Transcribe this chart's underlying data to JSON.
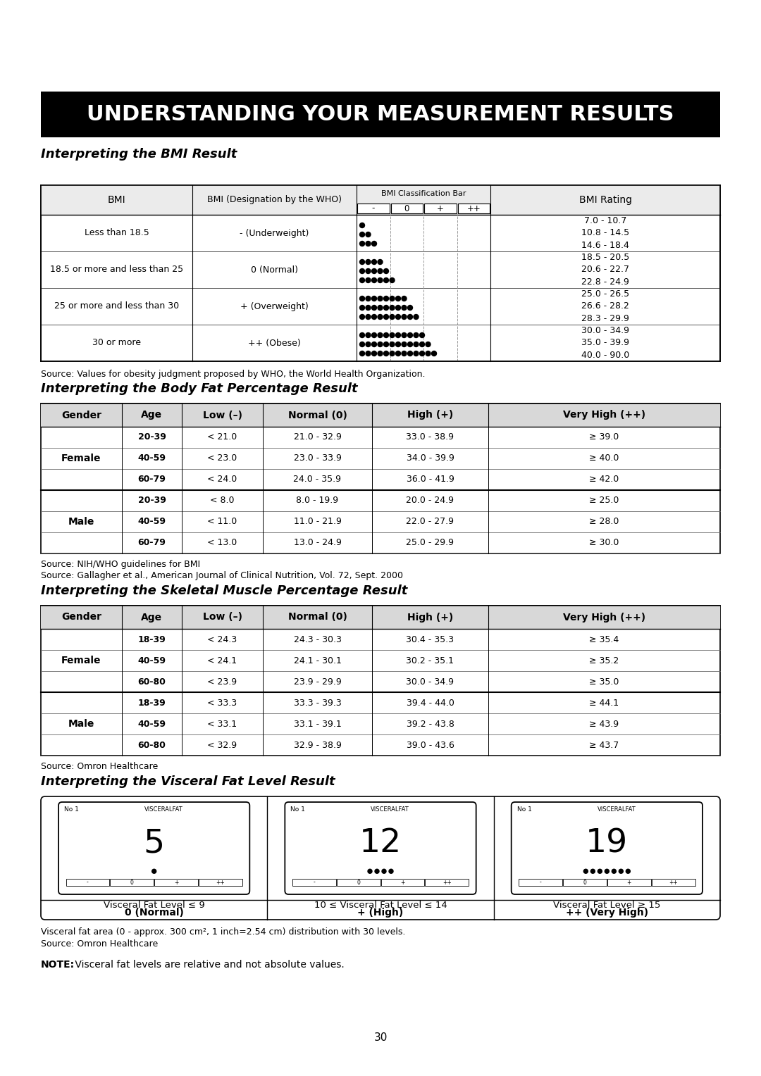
{
  "title": "UNDERSTANDING YOUR MEASUREMENT RESULTS",
  "title_bg": "#000000",
  "title_color": "#ffffff",
  "page_bg": "#ffffff",
  "page_number": "30",
  "bmi_section_title": "Interpreting the BMI Result",
  "bmi_headers": [
    "BMI",
    "BMI (Designation by the WHO)",
    "BMI Classification Bar",
    "BMI Rating"
  ],
  "bmi_rows": [
    {
      "bmi": "Less than 18.5",
      "designation": "- (Underweight)",
      "dots_rows": [
        1,
        2,
        3
      ],
      "ratings": [
        "7.0 - 10.7",
        "10.8 - 14.5",
        "14.6 - 18.4"
      ]
    },
    {
      "bmi": "18.5 or more and less than 25",
      "designation": "0 (Normal)",
      "dots_rows": [
        4,
        5,
        6
      ],
      "ratings": [
        "18.5 - 20.5",
        "20.6 - 22.7",
        "22.8 - 24.9"
      ]
    },
    {
      "bmi": "25 or more and less than 30",
      "designation": "+ (Overweight)",
      "dots_rows": [
        8,
        9,
        10
      ],
      "ratings": [
        "25.0 - 26.5",
        "26.6 - 28.2",
        "28.3 - 29.9"
      ]
    },
    {
      "bmi": "30 or more",
      "designation": "++ (Obese)",
      "dots_rows": [
        11,
        12,
        13
      ],
      "ratings": [
        "30.0 - 34.9",
        "35.0 - 39.9",
        "40.0 - 90.0"
      ]
    }
  ],
  "bmi_source": "Source: Values for obesity judgment proposed by WHO, the World Health Organization.",
  "bmi_cb_labels": [
    "-",
    "0",
    "+",
    "++"
  ],
  "bfp_section_title": "Interpreting the Body Fat Percentage Result",
  "bfp_headers": [
    "Gender",
    "Age",
    "Low (–)",
    "Normal (0)",
    "High (+)",
    "Very High (++)"
  ],
  "bfp_rows": [
    [
      "Female",
      "20-39",
      "< 21.0",
      "21.0 - 32.9",
      "33.0 - 38.9",
      "≥ 39.0"
    ],
    [
      "Female",
      "40-59",
      "< 23.0",
      "23.0 - 33.9",
      "34.0 - 39.9",
      "≥ 40.0"
    ],
    [
      "Female",
      "60-79",
      "< 24.0",
      "24.0 - 35.9",
      "36.0 - 41.9",
      "≥ 42.0"
    ],
    [
      "Male",
      "20-39",
      "< 8.0",
      "8.0 - 19.9",
      "20.0 - 24.9",
      "≥ 25.0"
    ],
    [
      "Male",
      "40-59",
      "< 11.0",
      "11.0 - 21.9",
      "22.0 - 27.9",
      "≥ 28.0"
    ],
    [
      "Male",
      "60-79",
      "< 13.0",
      "13.0 - 24.9",
      "25.0 - 29.9",
      "≥ 30.0"
    ]
  ],
  "bfp_source1": "Source: NIH/WHO guidelines for BMI",
  "bfp_source2": "Source: Gallagher et al., American Journal of Clinical Nutrition, Vol. 72, Sept. 2000",
  "smp_section_title": "Interpreting the Skeletal Muscle Percentage Result",
  "smp_headers": [
    "Gender",
    "Age",
    "Low (–)",
    "Normal (0)",
    "High (+)",
    "Very High (++)"
  ],
  "smp_rows": [
    [
      "Female",
      "18-39",
      "< 24.3",
      "24.3 - 30.3",
      "30.4 - 35.3",
      "≥ 35.4"
    ],
    [
      "Female",
      "40-59",
      "< 24.1",
      "24.1 - 30.1",
      "30.2 - 35.1",
      "≥ 35.2"
    ],
    [
      "Female",
      "60-80",
      "< 23.9",
      "23.9 - 29.9",
      "30.0 - 34.9",
      "≥ 35.0"
    ],
    [
      "Male",
      "18-39",
      "< 33.3",
      "33.3 - 39.3",
      "39.4 - 44.0",
      "≥ 44.1"
    ],
    [
      "Male",
      "40-59",
      "< 33.1",
      "33.1 - 39.1",
      "39.2 - 43.8",
      "≥ 43.9"
    ],
    [
      "Male",
      "60-80",
      "< 32.9",
      "32.9 - 38.9",
      "39.0 - 43.6",
      "≥ 43.7"
    ]
  ],
  "smp_source": "Source: Omron Healthcare",
  "vfl_section_title": "Interpreting the Visceral Fat Level Result",
  "vfl_panels": [
    {
      "label": "Visceral Fat Level ≤ 9",
      "sublabel": "0 (Normal)",
      "display_num": "5"
    },
    {
      "label": "10 ≤ Visceral Fat Level ≤ 14",
      "sublabel": "+ (High)",
      "display_num": "12"
    },
    {
      "label": "Visceral Fat Level ≥ 15",
      "sublabel": "++ (Very High)",
      "display_num": "19"
    }
  ],
  "vfl_note1": "Visceral fat area (0 - approx. 300 cm², 1 inch=2.54 cm) distribution with 30 levels.",
  "vfl_note2": "Source: Omron Healthcare",
  "vfl_note3_bold": "NOTE:",
  "vfl_note3_rest": " Visceral fat levels are relative and not absolute values."
}
